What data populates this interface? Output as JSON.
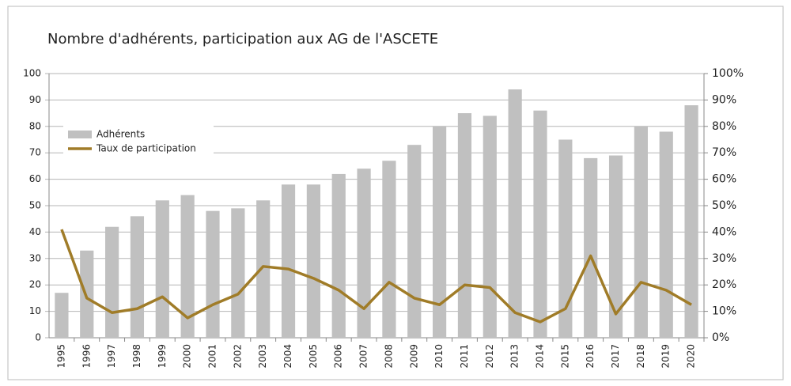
{
  "chart_data": {
    "type": "bar_line",
    "title": "Nombre d'adhérents, participation aux AG de l'ASCETE",
    "categories": [
      "1995",
      "1996",
      "1997",
      "1998",
      "1999",
      "2000",
      "2001",
      "2002",
      "2003",
      "2004",
      "2005",
      "2006",
      "2007",
      "2008",
      "2009",
      "2010",
      "2011",
      "2012",
      "2013",
      "2014",
      "2015",
      "2016",
      "2017",
      "2018",
      "2019",
      "2020"
    ],
    "series": [
      {
        "name": "Adhérents",
        "type": "bar",
        "color": "#c0c0c0",
        "values": [
          17,
          33,
          42,
          46,
          52,
          54,
          48,
          49,
          52,
          58,
          58,
          62,
          64,
          67,
          73,
          80,
          85,
          84,
          94,
          86,
          75,
          68,
          69,
          80,
          78,
          88
        ]
      },
      {
        "name": "Taux de participation",
        "type": "line",
        "axis": "y2",
        "color": "#a07c28",
        "values": [
          41,
          15,
          9.5,
          11,
          15.5,
          7.5,
          12.5,
          16.5,
          27,
          26,
          22.5,
          18,
          11,
          21,
          15,
          12.5,
          20,
          19,
          9.5,
          6,
          11,
          31,
          9,
          21,
          18,
          12.5
        ]
      }
    ],
    "ylim": [
      0,
      100
    ],
    "yticks": [
      0,
      10,
      20,
      30,
      40,
      50,
      60,
      70,
      80,
      90,
      100
    ],
    "y2lim": [
      0,
      100
    ],
    "y2ticks": [
      {
        "value": 0,
        "label": "0%"
      },
      {
        "value": 10,
        "label": "10%"
      },
      {
        "value": 20,
        "label": "20%"
      },
      {
        "value": 30,
        "label": "30%"
      },
      {
        "value": 40,
        "label": "40%"
      },
      {
        "value": 50,
        "label": "50%"
      },
      {
        "value": 60,
        "label": "60%"
      },
      {
        "value": 70,
        "label": "70%"
      },
      {
        "value": 80,
        "label": "80%"
      },
      {
        "value": 90,
        "label": "90%"
      },
      {
        "value": 100,
        "label": "100%"
      }
    ],
    "grid": true,
    "legend": "upper-left"
  }
}
